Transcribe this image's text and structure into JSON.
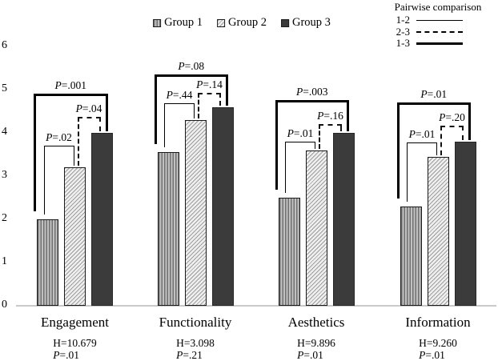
{
  "legend": {
    "groups": [
      {
        "label": "Group 1",
        "pattern": "vertical-stripes"
      },
      {
        "label": "Group 2",
        "pattern": "diagonal-hatch"
      },
      {
        "label": "Group 3",
        "pattern": "solid-dark"
      }
    ]
  },
  "pairwise_legend": {
    "title": "Pairwise comparison",
    "items": [
      {
        "label": "1-2",
        "line": "thin-solid"
      },
      {
        "label": "2-3",
        "line": "dashed"
      },
      {
        "label": "1-3",
        "line": "thick-solid"
      }
    ]
  },
  "chart_data": {
    "type": "bar",
    "categories": [
      "Engagement",
      "Functionality",
      "Aesthetics",
      "Information"
    ],
    "series": [
      {
        "name": "Group 1",
        "values": [
          2.0,
          3.55,
          2.5,
          2.3
        ]
      },
      {
        "name": "Group 2",
        "values": [
          3.2,
          4.3,
          3.6,
          3.45
        ]
      },
      {
        "name": "Group 3",
        "values": [
          4.0,
          4.6,
          4.0,
          3.8
        ]
      }
    ],
    "title": "",
    "xlabel": "",
    "ylabel": "",
    "ylim": [
      0,
      6
    ],
    "yticks": [
      0,
      1,
      2,
      3,
      4,
      5,
      6
    ],
    "grid": false,
    "legend_position": "top",
    "brackets": [
      {
        "category": "Engagement",
        "comparisons": [
          {
            "pair": "1-2",
            "label": "P=.02",
            "level": 3.7
          },
          {
            "pair": "2-3",
            "label": "P=.04",
            "level": 4.37
          },
          {
            "pair": "1-3",
            "label": "P=.001",
            "level": 4.9
          }
        ]
      },
      {
        "category": "Functionality",
        "comparisons": [
          {
            "pair": "1-2",
            "label": "P=.44",
            "level": 4.69
          },
          {
            "pair": "2-3",
            "label": "P=.14",
            "level": 4.93
          },
          {
            "pair": "1-3",
            "label": "P=.08",
            "level": 5.35
          }
        ]
      },
      {
        "category": "Aesthetics",
        "comparisons": [
          {
            "pair": "1-2",
            "label": "P=.01",
            "level": 3.8
          },
          {
            "pair": "2-3",
            "label": "P=.16",
            "level": 4.2
          },
          {
            "pair": "1-3",
            "label": "P=.003",
            "level": 4.76
          }
        ]
      },
      {
        "category": "Information",
        "comparisons": [
          {
            "pair": "1-2",
            "label": "P=.01",
            "level": 3.78
          },
          {
            "pair": "2-3",
            "label": "P=.20",
            "level": 4.17
          },
          {
            "pair": "1-3",
            "label": "P=.01",
            "level": 4.7
          }
        ]
      }
    ],
    "category_stats": [
      {
        "category": "Engagement",
        "h_label": "H=10.679",
        "p_label": "P=.01"
      },
      {
        "category": "Functionality",
        "h_label": "H=3.098",
        "p_label": "P=.21"
      },
      {
        "category": "Aesthetics",
        "h_label": "H=9.896",
        "p_label": "P=.01"
      },
      {
        "category": "Information",
        "h_label": "H=9.260",
        "p_label": "P=.01"
      }
    ],
    "colors": {
      "group1_stripe": "#6f6f6f",
      "group2_hatch": "#9e9e9e",
      "group3_fill": "#3b3b3b",
      "bracket_line": "#000000",
      "axis_line": "#c9c9c9"
    }
  }
}
